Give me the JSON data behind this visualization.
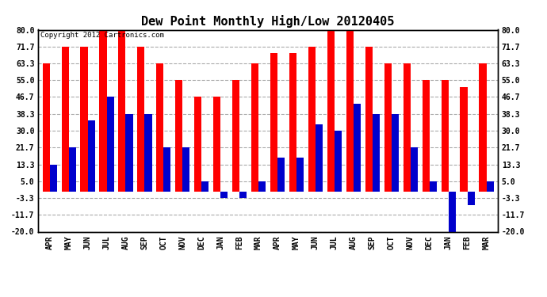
{
  "title": "Dew Point Monthly High/Low 20120405",
  "copyright": "Copyright 2012 Cartronics.com",
  "categories": [
    "APR",
    "MAY",
    "JUN",
    "JUL",
    "AUG",
    "SEP",
    "OCT",
    "NOV",
    "DEC",
    "JAN",
    "FEB",
    "MAR",
    "APR",
    "MAY",
    "JUN",
    "JUL",
    "AUG",
    "SEP",
    "OCT",
    "NOV",
    "DEC",
    "JAN",
    "FEB",
    "MAR"
  ],
  "highs": [
    63.3,
    71.7,
    71.7,
    80.0,
    80.0,
    71.7,
    63.3,
    55.0,
    46.7,
    46.7,
    55.0,
    63.3,
    68.3,
    68.3,
    71.7,
    80.0,
    80.0,
    71.7,
    63.3,
    63.3,
    55.0,
    55.0,
    51.7,
    63.3
  ],
  "lows": [
    13.3,
    21.7,
    35.0,
    46.7,
    38.3,
    38.3,
    21.7,
    21.7,
    5.0,
    -3.3,
    -3.3,
    5.0,
    16.7,
    16.7,
    33.3,
    30.0,
    43.3,
    38.3,
    38.3,
    21.7,
    5.0,
    -20.0,
    -6.7,
    5.0
  ],
  "ylim": [
    -20.0,
    80.0
  ],
  "yticks": [
    -20.0,
    -11.7,
    -3.3,
    5.0,
    13.3,
    21.7,
    30.0,
    38.3,
    46.7,
    55.0,
    63.3,
    71.7,
    80.0
  ],
  "bar_width": 0.38,
  "high_color": "#ff0000",
  "low_color": "#0000cc",
  "bg_color": "#ffffff",
  "grid_color": "#aaaaaa",
  "title_fontsize": 11,
  "axis_fontsize": 7,
  "copyright_fontsize": 6.5
}
